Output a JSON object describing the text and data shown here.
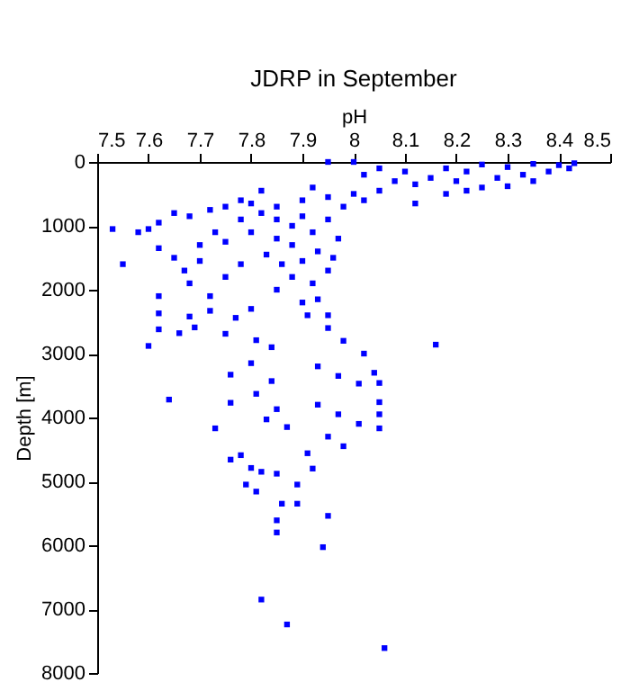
{
  "chart_data": {
    "type": "scatter",
    "title": "JDRP in September",
    "xlabel": "pH",
    "ylabel": "Depth [m]",
    "marker": "square",
    "grid": false,
    "xlim": [
      7.5,
      8.5
    ],
    "ylim": [
      8000,
      0
    ],
    "xticks": [
      7.5,
      7.6,
      7.7,
      7.8,
      7.9,
      8,
      8.1,
      8.2,
      8.3,
      8.4,
      8.5
    ],
    "yticks": [
      0,
      1000,
      2000,
      3000,
      4000,
      5000,
      6000,
      7000,
      8000
    ],
    "series": [
      {
        "color": "#0000ff",
        "x": [
          8.43,
          8.42,
          8.4,
          8.38,
          8.35,
          8.33,
          8.3,
          8.28,
          8.25,
          8.22,
          8.2,
          8.18,
          8.15,
          8.12,
          8.35,
          8.3,
          8.25,
          8.22,
          8.18,
          8.1,
          8.05,
          8.0,
          7.95,
          8.02,
          8.08,
          8.05,
          8.0,
          8.12,
          8.02,
          7.98,
          7.95,
          7.92,
          7.9,
          7.85,
          7.82,
          7.8,
          7.78,
          7.75,
          7.72,
          7.68,
          7.65,
          7.62,
          7.6,
          7.58,
          7.53,
          7.55,
          7.62,
          7.65,
          7.7,
          7.73,
          7.78,
          7.82,
          7.85,
          7.88,
          7.9,
          7.92,
          7.95,
          7.97,
          7.88,
          7.85,
          7.8,
          7.75,
          7.7,
          7.67,
          7.62,
          7.68,
          7.75,
          7.78,
          7.83,
          7.86,
          7.9,
          7.93,
          7.96,
          7.88,
          7.92,
          7.95,
          7.85,
          7.9,
          7.93,
          7.72,
          7.8,
          7.95,
          7.6,
          8.16,
          7.64,
          7.91,
          7.95,
          7.98,
          8.02,
          7.93,
          7.97,
          8.01,
          8.04,
          7.93,
          7.97,
          8.01,
          7.95,
          7.98,
          7.73,
          7.76,
          7.76,
          7.8,
          7.81,
          7.84,
          7.85,
          7.83,
          7.76,
          7.78,
          7.8,
          7.82,
          7.79,
          7.81,
          7.85,
          7.89,
          7.86,
          7.89,
          7.85,
          7.85,
          7.95,
          7.94,
          7.91,
          7.92,
          7.87,
          8.05,
          8.05,
          8.05,
          8.05,
          7.82,
          7.87,
          8.06,
          7.62,
          7.68,
          7.72,
          7.77,
          7.62,
          7.66,
          7.69,
          7.75,
          7.81,
          7.84
        ],
        "values": [
          20,
          100,
          50,
          150,
          30,
          200,
          80,
          250,
          40,
          150,
          300,
          100,
          250,
          350,
          300,
          380,
          400,
          450,
          500,
          150,
          100,
          0,
          0,
          200,
          300,
          450,
          500,
          650,
          600,
          700,
          550,
          400,
          600,
          700,
          450,
          650,
          600,
          700,
          750,
          850,
          800,
          950,
          1050,
          1100,
          1050,
          1600,
          1350,
          1500,
          1300,
          1100,
          900,
          800,
          900,
          1000,
          850,
          1100,
          900,
          1200,
          1300,
          1200,
          1100,
          1250,
          1550,
          1700,
          2100,
          1900,
          1800,
          1600,
          1450,
          1600,
          1550,
          1400,
          1500,
          1800,
          1900,
          1700,
          2000,
          2200,
          2150,
          2100,
          2300,
          2400,
          2880,
          2860,
          3720,
          2400,
          2600,
          2800,
          3000,
          3200,
          3350,
          3470,
          3300,
          3800,
          3950,
          4100,
          4300,
          4450,
          4170,
          3770,
          3330,
          3150,
          3630,
          3430,
          3870,
          4030,
          4660,
          4590,
          4790,
          4850,
          5050,
          5160,
          4880,
          5050,
          5350,
          5350,
          5610,
          5800,
          5540,
          6030,
          4560,
          4800,
          4150,
          4170,
          3760,
          3460,
          3950,
          6850,
          7240,
          7610,
          2370,
          2420,
          2330,
          2440,
          2620,
          2680,
          2590,
          2690,
          2790,
          2900
        ]
      }
    ]
  }
}
